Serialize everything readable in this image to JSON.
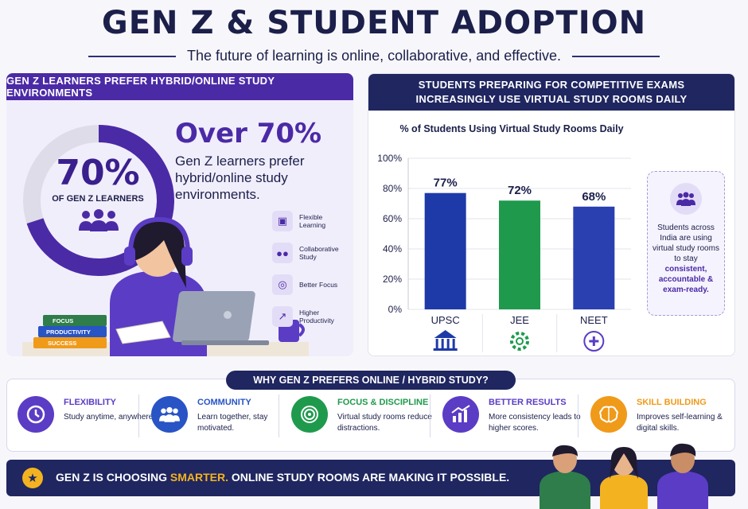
{
  "header": {
    "title": "GEN Z & STUDENT ADOPTION",
    "subtitle": "The future of learning is online, collaborative, and effective."
  },
  "left_panel": {
    "heading": "GEN Z LEARNERS PREFER HYBRID/ONLINE STUDY ENVIRONMENTS",
    "donut_value": "70%",
    "donut_fraction": 0.7,
    "donut_label": "OF GEN Z LEARNERS",
    "headline": "Over 70%",
    "description": "Gen Z learners prefer hybrid/online study environments.",
    "books": [
      "FOCUS",
      "PRODUCTIVITY",
      "SUCCESS"
    ],
    "benefits": [
      {
        "label": "Flexible Learning",
        "icon": "laptop-icon"
      },
      {
        "label": "Collaborative Study",
        "icon": "group-icon"
      },
      {
        "label": "Better Focus",
        "icon": "target-icon"
      },
      {
        "label": "Higher Productivity",
        "icon": "growth-chart-icon"
      }
    ]
  },
  "right_panel": {
    "heading_line1": "STUDENTS PREPARING FOR COMPETITIVE EXAMS",
    "heading_line2": "INCREASINGLY USE VIRTUAL STUDY ROOMS DAILY",
    "note_text": "Students across India are using virtual study rooms to stay",
    "note_highlight": "consistent, accountable & exam-ready."
  },
  "chart_data": {
    "type": "bar",
    "title": "% of Students Using Virtual Study Rooms Daily",
    "categories": [
      "UPSC",
      "JEE",
      "NEET"
    ],
    "values": [
      77,
      72,
      68
    ],
    "value_labels": [
      "77%",
      "72%",
      "68%"
    ],
    "ylim": [
      0,
      100
    ],
    "yticks": [
      "0%",
      "20%",
      "40%",
      "60%",
      "80%",
      "100%"
    ],
    "colors": [
      "#1e3aa8",
      "#1f9a4d",
      "#2a3fb0"
    ],
    "grid": true,
    "category_icons": [
      "government-building-icon",
      "gear-icon",
      "plus-circle-icon"
    ]
  },
  "why": {
    "banner": "WHY GEN Z PREFERS ONLINE / HYBRID STUDY?",
    "features": [
      {
        "title": "FLEXIBILITY",
        "desc": "Study anytime, anywhere.",
        "color": "#5b3cc4",
        "icon": "clock-icon"
      },
      {
        "title": "COMMUNITY",
        "desc": "Learn together, stay motivated.",
        "color": "#2854c5",
        "icon": "group-icon"
      },
      {
        "title": "FOCUS & DISCIPLINE",
        "desc": "Virtual study rooms reduce distractions.",
        "color": "#1f9a4d",
        "icon": "target-icon"
      },
      {
        "title": "BETTER RESULTS",
        "desc": "More consistency leads to higher scores.",
        "color": "#5b3cc4",
        "icon": "growth-chart-icon"
      },
      {
        "title": "SKILL BUILDING",
        "desc": "Improves self-learning & digital skills.",
        "color": "#f09a1a",
        "icon": "brain-icon"
      }
    ]
  },
  "footer": {
    "text_pre": "GEN Z IS CHOOSING ",
    "text_highlight": "SMARTER.",
    "text_post": " ONLINE STUDY ROOMS ARE MAKING IT POSSIBLE."
  }
}
